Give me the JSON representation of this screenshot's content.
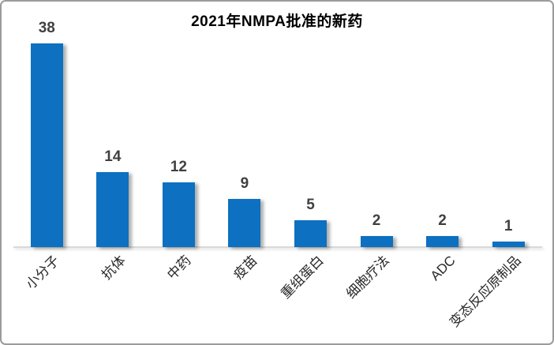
{
  "window": {
    "background": "#ffffff",
    "border_color": "#9b9b9b"
  },
  "chart_data": {
    "type": "bar",
    "title": "2021年NMPA批准的新药",
    "categories": [
      "小分子",
      "抗体",
      "中药",
      "疫苗",
      "重组蛋白",
      "细胞疗法",
      "ADC",
      "变态反应原制品"
    ],
    "values": [
      38,
      14,
      12,
      9,
      5,
      2,
      2,
      1
    ],
    "xlabel": "",
    "ylabel": "",
    "ylim": [
      0,
      40
    ],
    "grid": false,
    "legend": false,
    "data_labels_visible": true,
    "x_tick_rotation": 45,
    "bar_color": "#0d70c0",
    "title_color": "#000000",
    "value_label_color": "#404040",
    "category_label_color": "#262626",
    "axis_line_color": "#d9d9d9"
  }
}
